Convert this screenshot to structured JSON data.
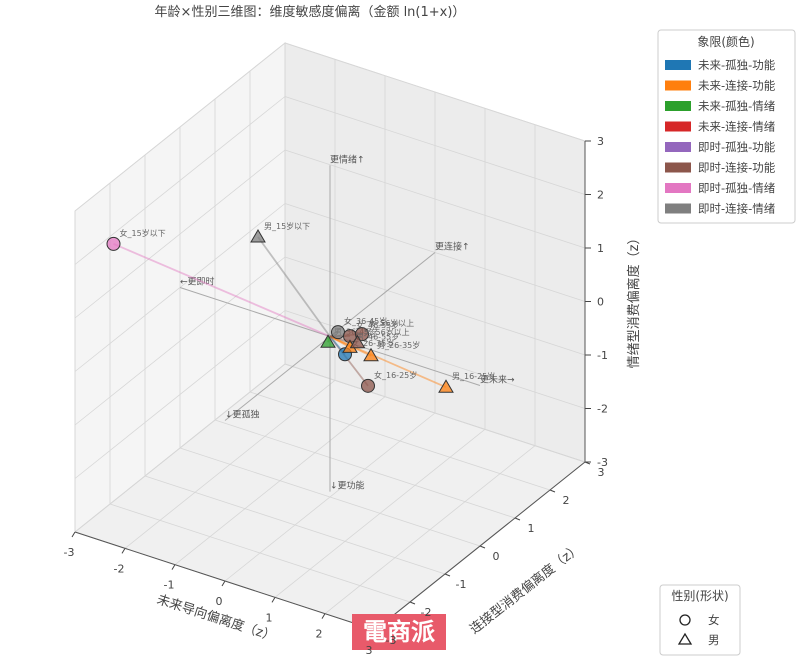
{
  "chart_data": {
    "type": "scatter3d",
    "title": "年龄×性别三维图：维度敏感度偏离（金额 ln(1+x)）",
    "x_label": "未来导向偏离度（z）",
    "y_label": "连接型消费偏离度（z）",
    "z_label": "情绪型消费偏离度（z）",
    "xlim": [
      -3,
      3
    ],
    "ylim": [
      -3,
      3
    ],
    "zlim": [
      -3,
      3
    ],
    "xticks": [
      -3,
      -2,
      -1,
      0,
      1,
      2,
      3
    ],
    "yticks": [
      -3,
      -2,
      -1,
      0,
      1,
      2,
      3
    ],
    "zticks": [
      -3,
      -2,
      -1,
      0,
      1,
      2,
      3
    ],
    "grid": true,
    "color_legend_title": "象限(颜色)",
    "color_legend": [
      {
        "name": "未来-孤独-功能",
        "color": "#1f77b4"
      },
      {
        "name": "未来-连接-功能",
        "color": "#ff7f0e"
      },
      {
        "name": "未来-孤独-情绪",
        "color": "#2ca02c"
      },
      {
        "name": "未来-连接-情绪",
        "color": "#d62728"
      },
      {
        "name": "即时-孤独-功能",
        "color": "#9467bd"
      },
      {
        "name": "即时-连接-功能",
        "color": "#8c564b"
      },
      {
        "name": "即时-孤独-情绪",
        "color": "#e377c2"
      },
      {
        "name": "即时-连接-情绪",
        "color": "#7f7f7f"
      }
    ],
    "shape_legend_title": "性别(形状)",
    "shape_legend": [
      {
        "label": "女",
        "marker": "circle"
      },
      {
        "label": "男",
        "marker": "triangle"
      }
    ],
    "axis_guides": [
      {
        "text": "更未来→",
        "x": 3,
        "y": 0,
        "z": 0
      },
      {
        "text": "←更即时",
        "x": -3,
        "y": 0,
        "z": 0
      },
      {
        "text": "更连接↑",
        "x": 0,
        "y": 3,
        "z": 0
      },
      {
        "text": "↓更孤独",
        "x": 0,
        "y": -3,
        "z": 0
      },
      {
        "text": "更情绪↑",
        "x": 0,
        "y": 0,
        "z": 3.2
      },
      {
        "text": "↓更功能",
        "x": 0,
        "y": 0,
        "z": -2.9
      }
    ],
    "points": [
      {
        "label": "女_15岁以下",
        "marker": "circle",
        "color": "#e377c2",
        "x": -3,
        "y": -1.9,
        "z": 1.81
      },
      {
        "label": "男_15岁以下",
        "marker": "triangle",
        "color": "#7f7f7f",
        "x": -1.44,
        "y": 0,
        "z": 1.42
      },
      {
        "label": "男_16-25岁",
        "marker": "triangle",
        "color": "#ff7f0e",
        "x": 2.32,
        "y": 0,
        "z": -0.24
      },
      {
        "label": "女_16-25岁",
        "marker": "circle",
        "color": "#8c564b",
        "x": 0.76,
        "y": 0,
        "z": -0.69
      },
      {
        "label": "男_26-35岁",
        "marker": "triangle",
        "color": "#ff7f0e",
        "x": 0.82,
        "y": 0,
        "z": -0.11
      },
      {
        "label": "女_26-35岁",
        "marker": "circle",
        "color": "#1f77b4",
        "x": 0.3,
        "y": 0,
        "z": -0.24
      },
      {
        "label": "男_36-45岁",
        "marker": "triangle",
        "color": "#2ca02c",
        "x": -0.04,
        "y": 0,
        "z": -0.12
      },
      {
        "label": "女_36-45岁",
        "marker": "circle",
        "color": "#7f7f7f",
        "x": 0.16,
        "y": 0,
        "z": 0.13
      },
      {
        "label": "女_46-55岁",
        "marker": "circle",
        "color": "#8c564b",
        "x": 0.4,
        "y": 0,
        "z": 0.13
      },
      {
        "label": "女_56岁以上",
        "marker": "circle",
        "color": "#8c564b",
        "x": 0.64,
        "y": 0,
        "z": 0.24
      },
      {
        "label": "男_46-55岁",
        "marker": "triangle",
        "color": "#ff7f0e",
        "x": 0.4,
        "y": 0,
        "z": -0.08
      },
      {
        "label": "男_56岁以上",
        "marker": "triangle",
        "color": "#8c564b",
        "x": 0.55,
        "y": 0,
        "z": 0.05
      }
    ]
  },
  "watermark": "電商派"
}
